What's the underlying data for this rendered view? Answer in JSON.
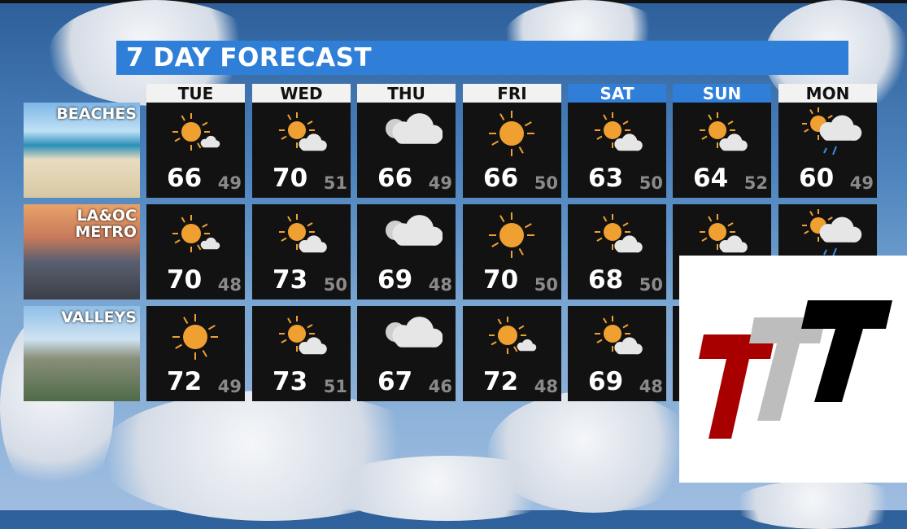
{
  "title": "7 DAY FORECAST",
  "days": [
    {
      "label": "TUE",
      "weekend": false
    },
    {
      "label": "WED",
      "weekend": false
    },
    {
      "label": "THU",
      "weekend": false
    },
    {
      "label": "FRI",
      "weekend": false
    },
    {
      "label": "SAT",
      "weekend": true
    },
    {
      "label": "SUN",
      "weekend": true
    },
    {
      "label": "MON",
      "weekend": false
    }
  ],
  "regions": [
    {
      "label": "BEACHES",
      "cells": [
        {
          "icon": "mostly-sunny-icon",
          "hi": "66",
          "lo": "49"
        },
        {
          "icon": "partly-sunny-icon",
          "hi": "70",
          "lo": "51"
        },
        {
          "icon": "cloudy-icon",
          "hi": "66",
          "lo": "49"
        },
        {
          "icon": "sunny-icon",
          "hi": "66",
          "lo": "50"
        },
        {
          "icon": "partly-sunny-icon",
          "hi": "63",
          "lo": "50"
        },
        {
          "icon": "partly-sunny-icon",
          "hi": "64",
          "lo": "52"
        },
        {
          "icon": "cloudy-showers-icon",
          "hi": "60",
          "lo": "49"
        }
      ]
    },
    {
      "label": "LA&OC\nMETRO",
      "cells": [
        {
          "icon": "mostly-sunny-icon",
          "hi": "70",
          "lo": "48"
        },
        {
          "icon": "partly-sunny-icon",
          "hi": "73",
          "lo": "50"
        },
        {
          "icon": "cloudy-icon",
          "hi": "69",
          "lo": "48"
        },
        {
          "icon": "sunny-icon",
          "hi": "70",
          "lo": "50"
        },
        {
          "icon": "partly-sunny-icon",
          "hi": "68",
          "lo": "50"
        },
        {
          "icon": "partly-sunny-icon",
          "hi": null,
          "lo": null
        },
        {
          "icon": "cloudy-showers-icon",
          "hi": null,
          "lo": null
        }
      ]
    },
    {
      "label": "VALLEYS",
      "cells": [
        {
          "icon": "sunny-icon",
          "hi": "72",
          "lo": "49"
        },
        {
          "icon": "partly-sunny-icon",
          "hi": "73",
          "lo": "51"
        },
        {
          "icon": "cloudy-icon",
          "hi": "67",
          "lo": "46"
        },
        {
          "icon": "mostly-sunny-icon",
          "hi": "72",
          "lo": "48"
        },
        {
          "icon": "partly-sunny-icon",
          "hi": "69",
          "lo": "48"
        },
        {
          "icon": null,
          "hi": null,
          "lo": null
        },
        {
          "icon": null,
          "hi": null,
          "lo": null
        }
      ]
    }
  ],
  "colors": {
    "accent": "#2f7fd8",
    "sun": "#f0a030",
    "cloud": "#e6e6e6",
    "rain": "#3a8ee6",
    "logo_red": "#a80000",
    "logo_gray": "#bdbdbd",
    "logo_black": "#000000"
  },
  "logo": {
    "text": "TTT"
  }
}
